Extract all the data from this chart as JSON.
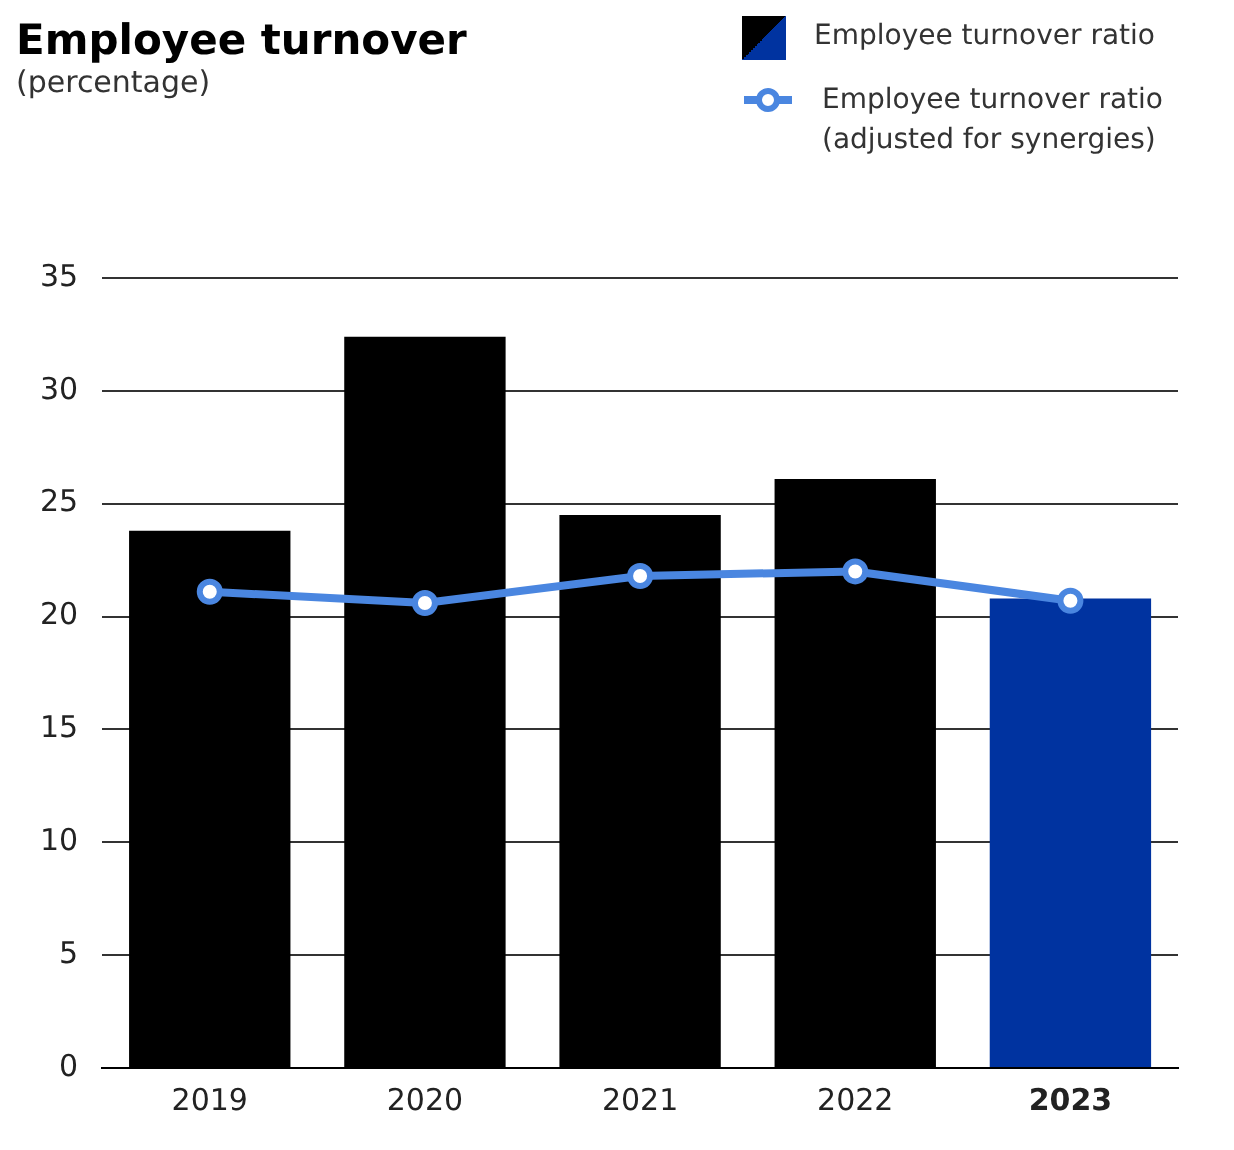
{
  "chart_data": {
    "type": "bar",
    "title": "Employee turnover",
    "subtitle": "(percentage)",
    "categories": [
      "2019",
      "2020",
      "2021",
      "2022",
      "2023"
    ],
    "series": [
      {
        "name": "Employee turnover ratio",
        "color": "#000000",
        "colors": [
          "#000000",
          "#000000",
          "#000000",
          "#000000",
          "#0033a0"
        ],
        "values": [
          23.8,
          32.4,
          24.5,
          26.1,
          20.8
        ]
      },
      {
        "name": "Employee turnover ratio (adjusted for synergies)",
        "type": "line",
        "color": "#4a86e0",
        "marker": "circle",
        "values": [
          21.1,
          20.6,
          21.8,
          22.0,
          20.7
        ]
      }
    ],
    "ylim": [
      0,
      35
    ],
    "yticks": [
      0,
      5,
      10,
      15,
      20,
      25,
      30,
      35
    ],
    "grid": "y",
    "legend": "top right"
  }
}
